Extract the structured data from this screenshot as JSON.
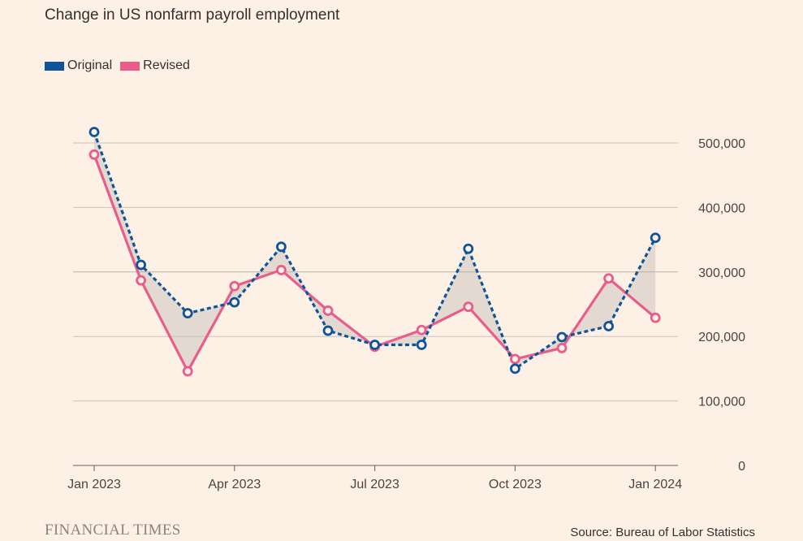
{
  "chart_data": {
    "type": "line",
    "title": "Change in US nonfarm payroll employment",
    "xlabel": "",
    "ylabel": "",
    "x": [
      "2023-01",
      "2023-02",
      "2023-03",
      "2023-04",
      "2023-05",
      "2023-06",
      "2023-07",
      "2023-08",
      "2023-09",
      "2023-10",
      "2023-11",
      "2023-12",
      "2024-01"
    ],
    "x_tick_labels": [
      "Jan 2023",
      "Apr 2023",
      "Jul 2023",
      "Oct 2023",
      "Jan 2024"
    ],
    "x_tick_months": [
      "2023-01",
      "2023-04",
      "2023-07",
      "2023-10",
      "2024-01"
    ],
    "y_ticks": [
      0,
      100000,
      200000,
      300000,
      400000,
      500000
    ],
    "y_tick_labels": [
      "0",
      "100,000",
      "200,000",
      "300,000",
      "400,000",
      "500,000"
    ],
    "ylim": [
      0,
      520000
    ],
    "y_axis_position": "right",
    "grid": true,
    "legend_position": "top-left",
    "fill_between_series": true,
    "series": [
      {
        "name": "Original",
        "color": "#0f5499",
        "style": "dashed",
        "values": [
          517000,
          311000,
          236000,
          253000,
          339000,
          209000,
          187000,
          187000,
          336000,
          150000,
          199000,
          216000,
          353000
        ]
      },
      {
        "name": "Revised",
        "color": "#e95d8c",
        "style": "solid",
        "values": [
          482000,
          287000,
          146000,
          278000,
          303000,
          240000,
          184000,
          210000,
          246000,
          165000,
          182000,
          290000,
          229000
        ]
      }
    ]
  },
  "colors": {
    "background": "#fdf1e6",
    "gridline": "#ccc1b7",
    "fill_between": "#e3d9d0"
  },
  "footer": {
    "brand": "FINANCIAL TIMES",
    "source": "Source: Bureau of Labor Statistics"
  }
}
